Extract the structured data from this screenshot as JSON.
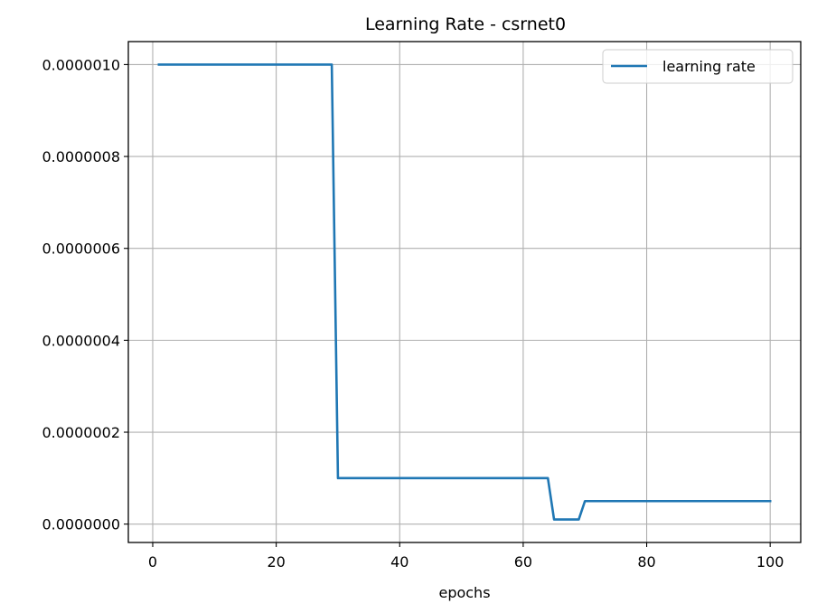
{
  "chart_data": {
    "type": "line",
    "title": "Learning Rate - csrnet0",
    "xlabel": "epochs",
    "ylabel": "",
    "xlim": [
      -3.95,
      104.95
    ],
    "ylim": [
      -4e-08,
      1.05e-06
    ],
    "x_ticks": [
      0,
      20,
      40,
      60,
      80,
      100
    ],
    "x_tick_labels": [
      "0",
      "20",
      "40",
      "60",
      "80",
      "100"
    ],
    "y_ticks": [
      0,
      2e-07,
      4e-07,
      6e-07,
      8e-07,
      1e-06
    ],
    "y_tick_labels": [
      "0.0000000",
      "0.0000002",
      "0.0000004",
      "0.0000006",
      "0.0000008",
      "0.0000010"
    ],
    "grid": true,
    "legend_placement": "top-right",
    "series": [
      {
        "name": "learning rate",
        "color": "#1f77b4",
        "points": [
          [
            1,
            1e-06
          ],
          [
            29,
            1e-06
          ],
          [
            30,
            1e-07
          ],
          [
            64,
            1e-07
          ],
          [
            65,
            1e-08
          ],
          [
            69,
            1e-08
          ],
          [
            70,
            5e-08
          ],
          [
            100,
            5e-08
          ]
        ]
      }
    ]
  }
}
